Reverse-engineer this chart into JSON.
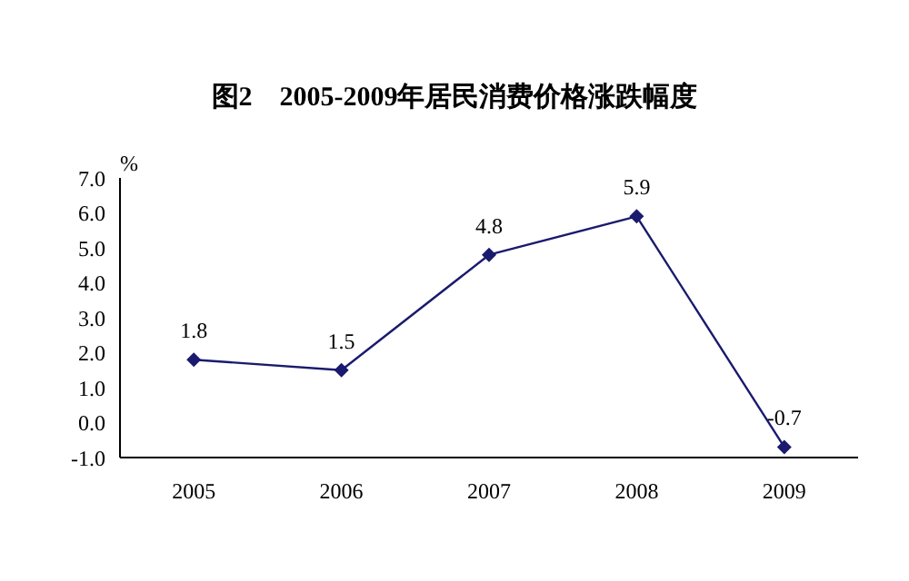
{
  "chart_data": {
    "type": "line",
    "title": "图2　2005-2009年居民消费价格涨跌幅度",
    "ylabel": "%",
    "categories": [
      "2005",
      "2006",
      "2007",
      "2008",
      "2009"
    ],
    "series": [
      {
        "color": "#1a1a6e",
        "values": [
          1.8,
          1.5,
          4.8,
          5.9,
          -0.7
        ]
      }
    ],
    "ylim": [
      -1,
      7
    ],
    "yticks": [
      {
        "value": -1,
        "label": "-1.0"
      },
      {
        "value": 0,
        "label": "0.0"
      },
      {
        "value": 1,
        "label": "1.0"
      },
      {
        "value": 2,
        "label": "2.0"
      },
      {
        "value": 3,
        "label": "3.0"
      },
      {
        "value": 4,
        "label": "4.0"
      },
      {
        "value": 5,
        "label": "5.0"
      },
      {
        "value": 6,
        "label": "6.0"
      },
      {
        "value": 7,
        "label": "7.0"
      }
    ],
    "marker": "diamond",
    "line_style": "solid",
    "grid": false,
    "legend": false,
    "data_labels": true
  }
}
